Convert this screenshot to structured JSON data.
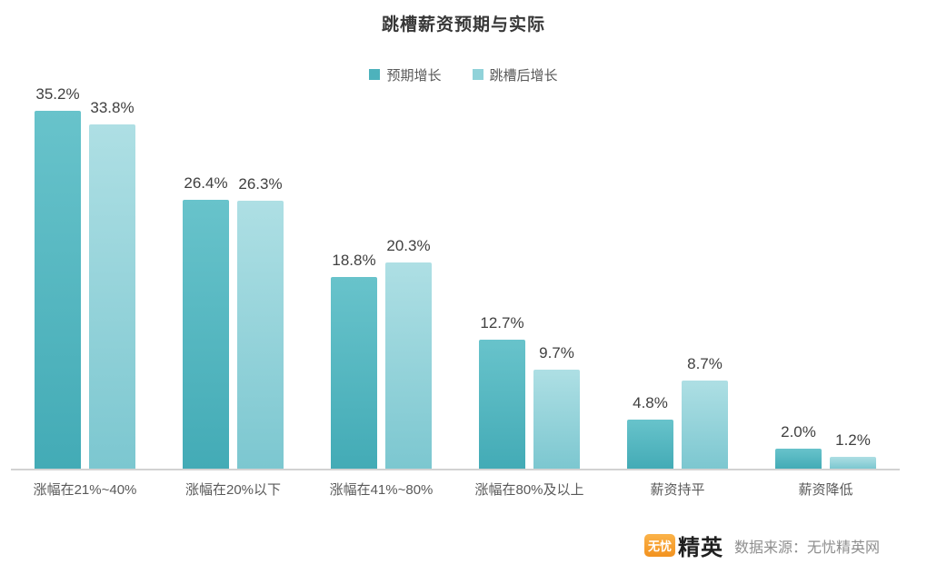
{
  "title": "跳槽薪资预期与实际",
  "chart_data": {
    "type": "bar",
    "title": "跳槽薪资预期与实际",
    "categories": [
      "涨幅在21%~40%",
      "涨幅在20%以下",
      "涨幅在41%~80%",
      "涨幅在80%及以上",
      "薪资持平",
      "薪资降低"
    ],
    "series": [
      {
        "name": "预期增长",
        "values": [
          35.2,
          26.4,
          18.8,
          12.7,
          4.8,
          2.0
        ]
      },
      {
        "name": "跳槽后增长",
        "values": [
          33.8,
          26.3,
          20.3,
          9.7,
          8.7,
          1.2
        ]
      }
    ],
    "unit": "%",
    "value_label_format": "one-decimal-percent",
    "ylim": [
      0,
      38
    ],
    "grid": false,
    "legend_position": "top",
    "xlabel": "",
    "ylabel": ""
  },
  "legend": [
    {
      "label": "预期增长",
      "color": "#4db2bc"
    },
    {
      "label": "跳槽后增长",
      "color": "#90d2d9"
    }
  ],
  "colors": {
    "series1_top": "#68c3cb",
    "series1_bottom": "#43abb6",
    "series2_top": "#aedfe4",
    "series2_bottom": "#7cc7d0",
    "axis_line": "#d2d2d2",
    "value_label": "#404040",
    "x_label": "#595959",
    "logo_orange": "#f7a437"
  },
  "footer": {
    "logo_box": "无忧",
    "logo_text": "精英",
    "source_text": "数据来源：无忧精英网"
  }
}
